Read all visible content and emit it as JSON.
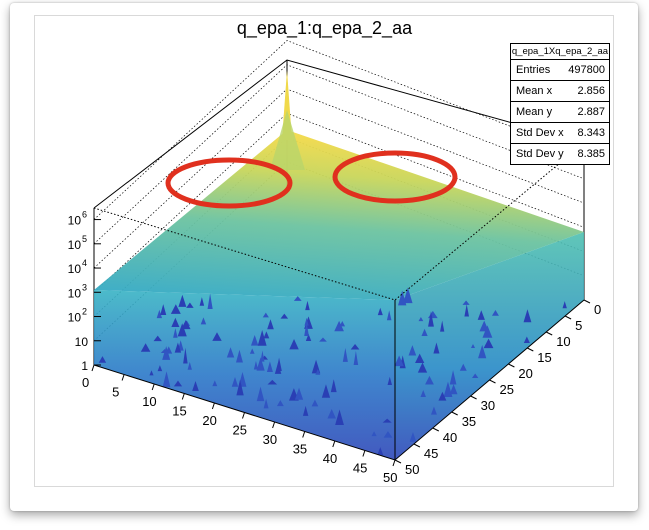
{
  "chart_data": {
    "type": "lego3d",
    "title": "q_epa_1:q_epa_2_aa",
    "x_ticks": [
      "0",
      "5",
      "10",
      "15",
      "20",
      "25",
      "30",
      "35",
      "40",
      "45",
      "50"
    ],
    "y_ticks": [
      "0",
      "5",
      "10",
      "15",
      "20",
      "25",
      "30",
      "35",
      "40",
      "45",
      "50"
    ],
    "z_ticks": [
      {
        "base": "1",
        "exp": ""
      },
      {
        "base": "10",
        "exp": ""
      },
      {
        "base": "10",
        "exp": "2"
      },
      {
        "base": "10",
        "exp": "3"
      },
      {
        "base": "10",
        "exp": "4"
      },
      {
        "base": "10",
        "exp": "5"
      },
      {
        "base": "10",
        "exp": "6"
      }
    ],
    "xlim": [
      0,
      50
    ],
    "ylim": [
      0,
      50
    ],
    "zscale": "log",
    "zlim": [
      1,
      3000000
    ],
    "colors": {
      "low": "#2a3fb4",
      "mid": "#1f9ec9",
      "high": "#e8cf3a",
      "annotation": "#e0301e"
    },
    "annotations": [
      "red-ellipse-left",
      "red-ellipse-right"
    ]
  },
  "stats_box": {
    "name": "q_epa_1Xq_epa_2_aa",
    "rows": [
      {
        "label": "Entries",
        "value": "497800"
      },
      {
        "label": "Mean x",
        "value": "2.856"
      },
      {
        "label": "Mean y",
        "value": "2.887"
      },
      {
        "label": "Std Dev x",
        "value": "8.343"
      },
      {
        "label": "Std Dev y",
        "value": "8.385"
      }
    ]
  }
}
